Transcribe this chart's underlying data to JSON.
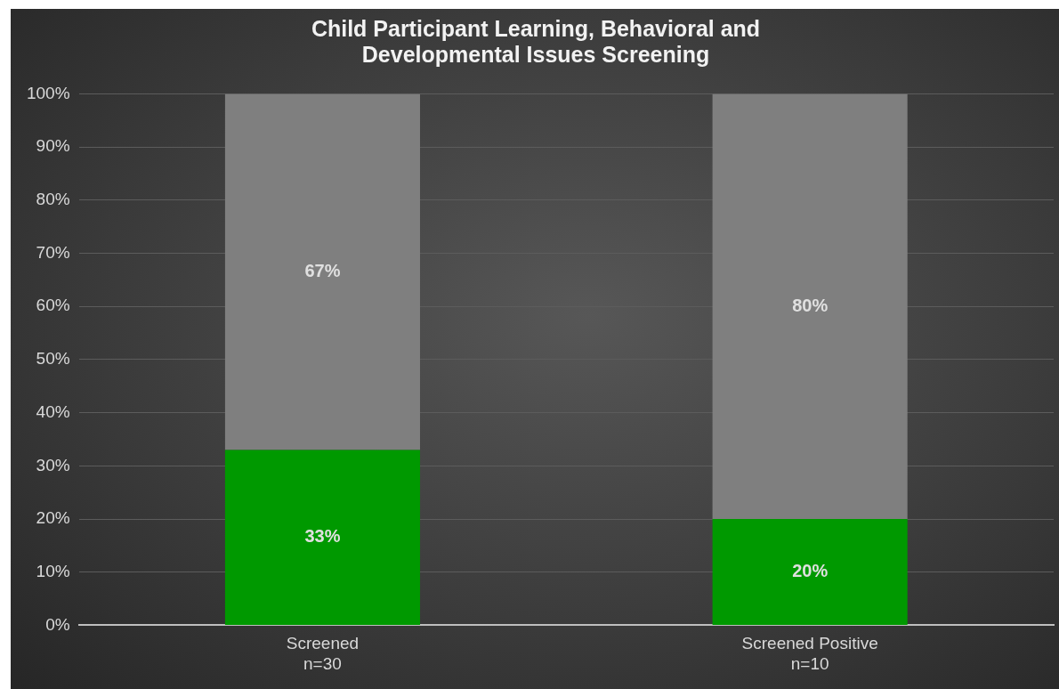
{
  "chart_data": {
    "type": "bar",
    "stacked": true,
    "title": "Child Participant Learning, Behavioral and\nDevelopmental Issues Screening",
    "categories": [
      "Screened\nn=30",
      "Screened Positive\nn=10"
    ],
    "series": [
      {
        "color": "#009900",
        "values": [
          33,
          20
        ],
        "value_labels": [
          "33%",
          "20%"
        ]
      },
      {
        "color": "#7f7f7f",
        "values": [
          67,
          80
        ],
        "value_labels": [
          "67%",
          "80%"
        ]
      }
    ],
    "ylim": [
      0,
      100
    ],
    "yticks": [
      {
        "value": 0,
        "label": "0%"
      },
      {
        "value": 10,
        "label": "10%"
      },
      {
        "value": 20,
        "label": "20%"
      },
      {
        "value": 30,
        "label": "30%"
      },
      {
        "value": 40,
        "label": "40%"
      },
      {
        "value": 50,
        "label": "50%"
      },
      {
        "value": 60,
        "label": "60%"
      },
      {
        "value": 70,
        "label": "70%"
      },
      {
        "value": 80,
        "label": "80%"
      },
      {
        "value": 90,
        "label": "90%"
      },
      {
        "value": 100,
        "label": "100%"
      }
    ],
    "grid": "y",
    "legend": false
  }
}
